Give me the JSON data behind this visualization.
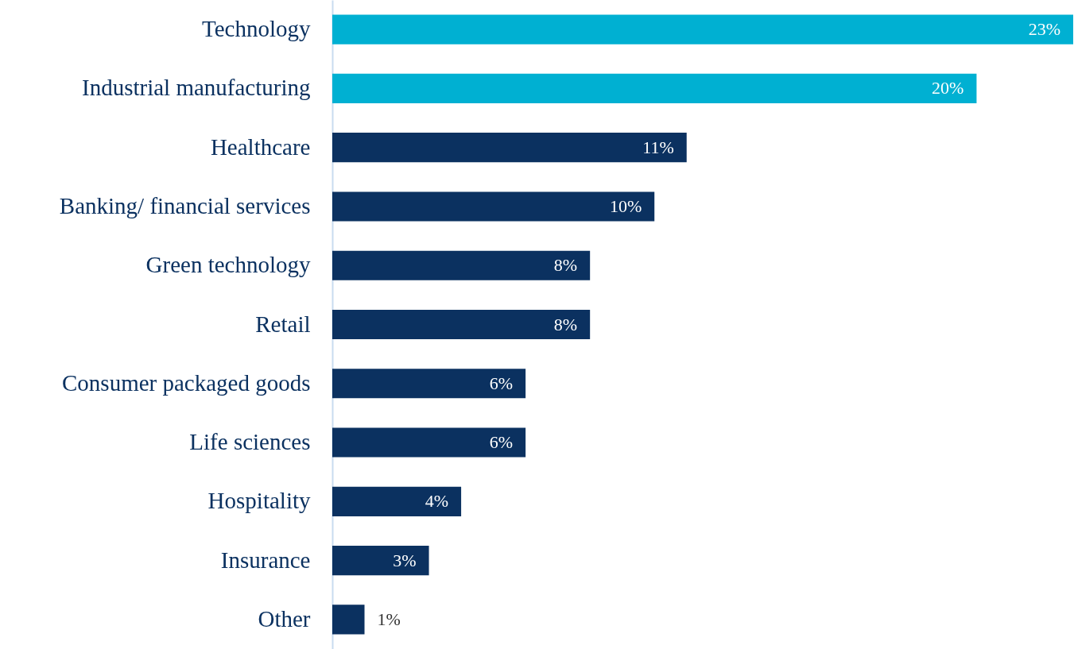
{
  "chart_data": {
    "type": "bar",
    "categories": [
      "Technology",
      "Industrial manufacturing",
      "Healthcare",
      "Banking/ financial services",
      "Green technology",
      "Retail",
      "Consumer packaged goods",
      "Life sciences",
      "Hospitality",
      "Insurance",
      "Other"
    ],
    "values": [
      23,
      20,
      11,
      10,
      8,
      8,
      6,
      6,
      4,
      3,
      1
    ],
    "value_labels": [
      "23%",
      "20%",
      "11%",
      "10%",
      "8%",
      "8%",
      "6%",
      "6%",
      "4%",
      "3%",
      "1%"
    ],
    "colors": [
      "#00b0d2",
      "#00b0d2",
      "#0b3160",
      "#0b3160",
      "#0b3160",
      "#0b3160",
      "#0b3160",
      "#0b3160",
      "#0b3160",
      "#0b3160",
      "#0b3160"
    ],
    "orientation": "horizontal"
  }
}
